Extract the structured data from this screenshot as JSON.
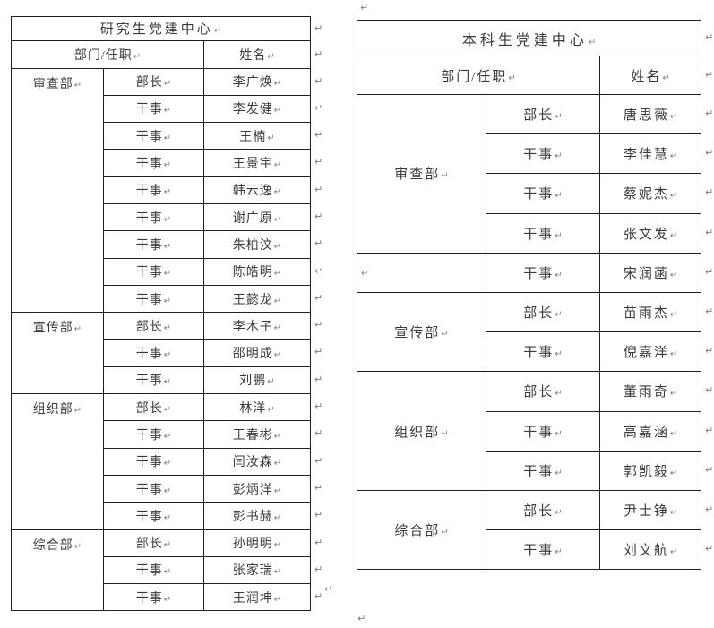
{
  "marks": {
    "pilcrow": "↵"
  },
  "colors": {
    "border": "#1f1f1f",
    "text": "#3a3a3a",
    "mark": "#7f7f7f"
  },
  "left_table": {
    "title": "研究生党建中心",
    "header": {
      "dept_role": "部门/任职",
      "name": "姓名"
    },
    "groups": [
      {
        "dept": "审查部",
        "members": [
          {
            "role": "部长",
            "name": "李广焕"
          },
          {
            "role": "干事",
            "name": "李发健"
          },
          {
            "role": "干事",
            "name": "王楠"
          },
          {
            "role": "干事",
            "name": "王景宇"
          },
          {
            "role": "干事",
            "name": "韩云逸"
          },
          {
            "role": "干事",
            "name": "谢广原"
          },
          {
            "role": "干事",
            "name": "朱柏汶"
          },
          {
            "role": "干事",
            "name": "陈皓明"
          },
          {
            "role": "干事",
            "name": "王懿龙"
          }
        ]
      },
      {
        "dept": "宣传部",
        "members": [
          {
            "role": "部长",
            "name": "李木子"
          },
          {
            "role": "干事",
            "name": "邵明成"
          },
          {
            "role": "干事",
            "name": "刘鹏"
          }
        ]
      },
      {
        "dept": "组织部",
        "members": [
          {
            "role": "部长",
            "name": "林洋"
          },
          {
            "role": "干事",
            "name": "王春彬"
          },
          {
            "role": "干事",
            "name": "闫汝森"
          },
          {
            "role": "干事",
            "name": "彭炳洋"
          },
          {
            "role": "干事",
            "name": "彭书赫"
          }
        ]
      },
      {
        "dept": "综合部",
        "members": [
          {
            "role": "部长",
            "name": "孙明明"
          },
          {
            "role": "干事",
            "name": "张家瑞"
          },
          {
            "role": "干事",
            "name": "王润坤"
          }
        ]
      }
    ]
  },
  "right_table": {
    "title": "本科生党建中心",
    "header": {
      "dept_role": "部门/任职",
      "name": "姓名"
    },
    "groups": [
      {
        "dept": "审查部",
        "members": [
          {
            "role": "部长",
            "name": "唐思薇"
          },
          {
            "role": "干事",
            "name": "李佳慧"
          },
          {
            "role": "干事",
            "name": "蔡妮杰"
          },
          {
            "role": "干事",
            "name": "张文发"
          }
        ]
      },
      {
        "dept": "",
        "members": [
          {
            "role": "干事",
            "name": "宋润菡"
          }
        ]
      },
      {
        "dept": "宣传部",
        "members": [
          {
            "role": "部长",
            "name": "苗雨杰"
          },
          {
            "role": "干事",
            "name": "倪嘉洋"
          }
        ]
      },
      {
        "dept": "组织部",
        "members": [
          {
            "role": "部长",
            "name": "董雨奇"
          },
          {
            "role": "干事",
            "name": "高嘉涵"
          },
          {
            "role": "干事",
            "name": "郭凯毅"
          }
        ]
      },
      {
        "dept": "综合部",
        "members": [
          {
            "role": "部长",
            "name": "尹士铮"
          },
          {
            "role": "干事",
            "name": "刘文航"
          }
        ]
      }
    ]
  }
}
